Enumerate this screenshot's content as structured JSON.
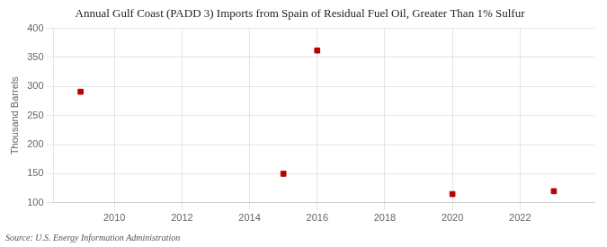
{
  "chart_data": {
    "type": "scatter",
    "title": "Annual Gulf Coast (PADD 3) Imports from Spain of Residual Fuel Oil, Greater Than 1% Sulfur",
    "y_label": "Thousand Barrels",
    "annotations": [
      "Source: U.S. Energy Information Administration"
    ],
    "x": [
      2009,
      2015,
      2016,
      2020,
      2023
    ],
    "values": [
      291,
      150,
      362,
      115,
      120
    ],
    "color": "#bb0000",
    "marker": "square",
    "xlim": [
      2008.2,
      2024.2
    ],
    "ylim": [
      100,
      400
    ],
    "xticks": [
      2010,
      2012,
      2014,
      2016,
      2018,
      2020,
      2022
    ],
    "yticks": [
      100,
      150,
      200,
      250,
      300,
      350,
      400
    ],
    "grid": true
  }
}
